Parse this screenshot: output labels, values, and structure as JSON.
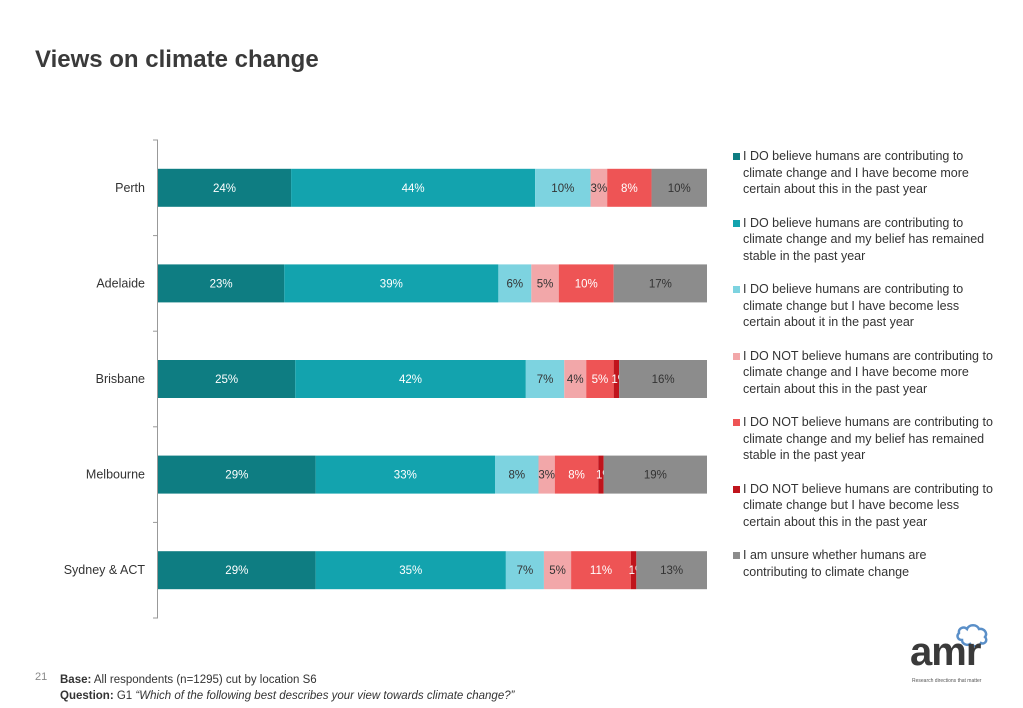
{
  "page": {
    "title": "Views on climate change",
    "page_number": "21",
    "base_label": "Base:",
    "base_text": " All respondents (n=1295) cut by location S6",
    "question_label": "Question:",
    "question_code": " G1 ",
    "question_text": "“Which of the following best describes your view towards climate change?”",
    "logo_text": "amr",
    "logo_tagline": "Research directions that matter"
  },
  "chart_data": {
    "type": "bar",
    "orientation": "horizontal",
    "stacked": true,
    "percent_stacked": true,
    "legend_position": "right",
    "grid": false,
    "categories": [
      "Perth",
      "Adelaide",
      "Brisbane",
      "Melbourne",
      "Sydney & ACT"
    ],
    "series": [
      {
        "name": "I DO believe humans are contributing to climate change and I have become more certain about this in the past year",
        "color": "#0e7d82",
        "values": [
          24,
          23,
          25,
          29,
          29
        ]
      },
      {
        "name": "I DO believe humans are contributing to climate change and my belief has remained stable in the past year",
        "color": "#13a3ae",
        "values": [
          44,
          39,
          42,
          33,
          35
        ]
      },
      {
        "name": "I DO believe humans are contributing to climate change but I have become less certain about it in the past year",
        "color": "#7dd3e0",
        "values": [
          10,
          6,
          7,
          8,
          7
        ]
      },
      {
        "name": "I DO NOT believe humans are contributing to climate change and I have become more certain about this in the past year",
        "color": "#f2a7a9",
        "values": [
          3,
          5,
          4,
          3,
          5
        ]
      },
      {
        "name": "I DO NOT believe humans are contributing to climate change and my belief has remained stable in the past year",
        "color": "#ee5455",
        "values": [
          8,
          10,
          5,
          8,
          11
        ]
      },
      {
        "name": "I DO NOT believe humans are contributing to climate change but I have become less certain about this in the past year",
        "color": "#c0141c",
        "values": [
          0,
          0,
          1,
          1,
          1
        ]
      },
      {
        "name": "I am unsure whether humans are contributing to climate change",
        "color": "#8c8c8c",
        "values": [
          10,
          17,
          16,
          19,
          13
        ]
      }
    ]
  }
}
